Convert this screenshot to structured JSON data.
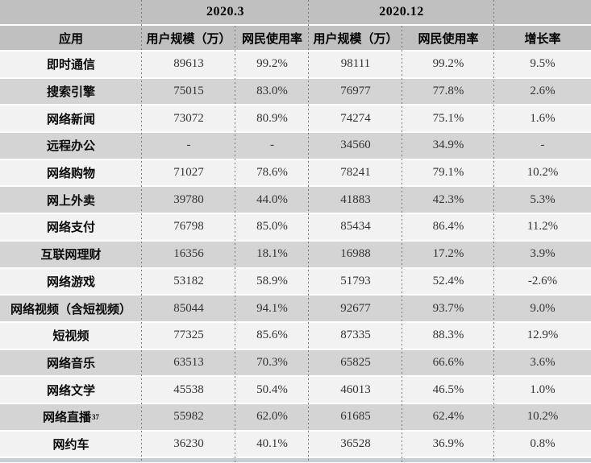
{
  "header": {
    "period1": "2020.3",
    "period2": "2020.12",
    "app": "应用",
    "user_scale": "用户规模（万）",
    "usage_rate": "网民使用率",
    "growth": "增长率"
  },
  "rows": [
    {
      "label": "即时通信",
      "sup": "",
      "scale1": "89613",
      "usage1": "99.2%",
      "scale2": "98111",
      "usage2": "99.2%",
      "growth": "9.5%"
    },
    {
      "label": "搜索引擎",
      "sup": "",
      "scale1": "75015",
      "usage1": "83.0%",
      "scale2": "76977",
      "usage2": "77.8%",
      "growth": "2.6%"
    },
    {
      "label": "网络新闻",
      "sup": "",
      "scale1": "73072",
      "usage1": "80.9%",
      "scale2": "74274",
      "usage2": "75.1%",
      "growth": "1.6%"
    },
    {
      "label": "远程办公",
      "sup": "",
      "scale1": "-",
      "usage1": "-",
      "scale2": "34560",
      "usage2": "34.9%",
      "growth": "-"
    },
    {
      "label": "网络购物",
      "sup": "",
      "scale1": "71027",
      "usage1": "78.6%",
      "scale2": "78241",
      "usage2": "79.1%",
      "growth": "10.2%"
    },
    {
      "label": "网上外卖",
      "sup": "",
      "scale1": "39780",
      "usage1": "44.0%",
      "scale2": "41883",
      "usage2": "42.3%",
      "growth": "5.3%"
    },
    {
      "label": "网络支付",
      "sup": "",
      "scale1": "76798",
      "usage1": "85.0%",
      "scale2": "85434",
      "usage2": "86.4%",
      "growth": "11.2%"
    },
    {
      "label": "互联网理财",
      "sup": "",
      "scale1": "16356",
      "usage1": "18.1%",
      "scale2": "16988",
      "usage2": "17.2%",
      "growth": "3.9%"
    },
    {
      "label": "网络游戏",
      "sup": "",
      "scale1": "53182",
      "usage1": "58.9%",
      "scale2": "51793",
      "usage2": "52.4%",
      "growth": "-2.6%"
    },
    {
      "label": "网络视频（含短视频）",
      "sup": "",
      "scale1": "85044",
      "usage1": "94.1%",
      "scale2": "92677",
      "usage2": "93.7%",
      "growth": "9.0%"
    },
    {
      "label": "短视频",
      "sup": "",
      "scale1": "77325",
      "usage1": "85.6%",
      "scale2": "87335",
      "usage2": "88.3%",
      "growth": "12.9%"
    },
    {
      "label": "网络音乐",
      "sup": "",
      "scale1": "63513",
      "usage1": "70.3%",
      "scale2": "65825",
      "usage2": "66.6%",
      "growth": "3.6%"
    },
    {
      "label": "网络文学",
      "sup": "",
      "scale1": "45538",
      "usage1": "50.4%",
      "scale2": "46013",
      "usage2": "46.5%",
      "growth": "1.0%"
    },
    {
      "label": "网络直播",
      "sup": "37",
      "scale1": "55982",
      "usage1": "62.0%",
      "scale2": "61685",
      "usage2": "62.4%",
      "growth": "10.2%"
    },
    {
      "label": "网约车",
      "sup": "",
      "scale1": "36230",
      "usage1": "40.1%",
      "scale2": "36528",
      "usage2": "36.9%",
      "growth": "0.8%"
    }
  ],
  "colors": {
    "header_bg": "#c0c0c0",
    "row_gray": "#d4d4d4",
    "row_light": "#f2f2f2",
    "separator": "#ffffff",
    "dash_line": "#767676",
    "num_text": "#333333"
  }
}
